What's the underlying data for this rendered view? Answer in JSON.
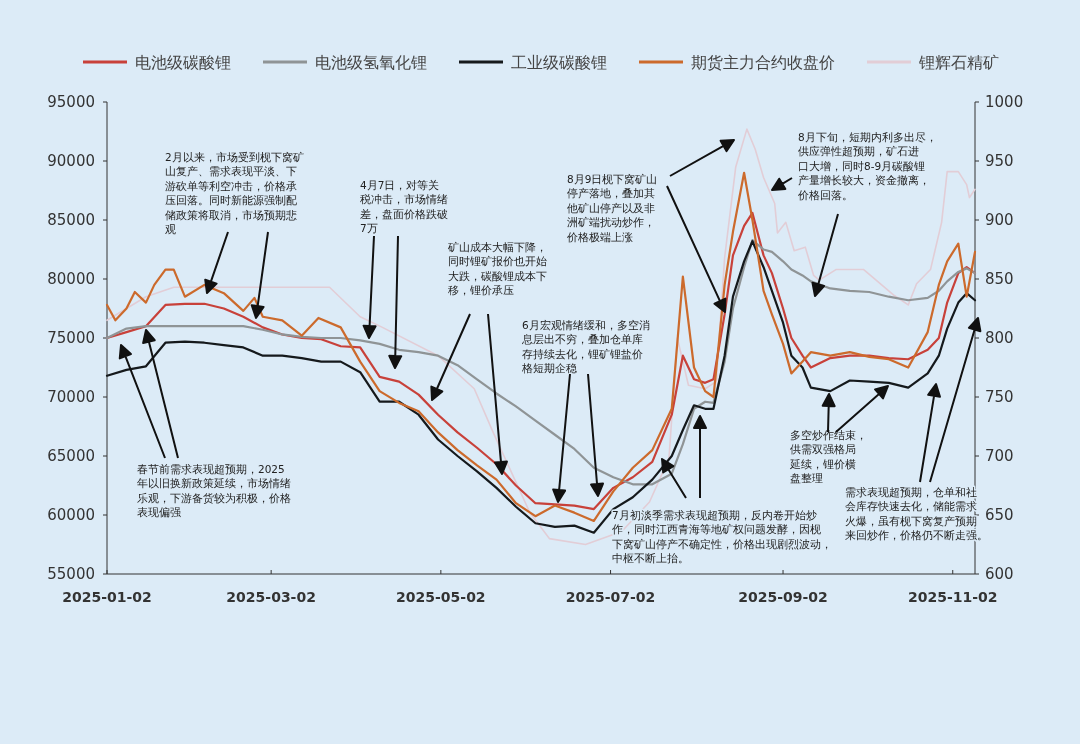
{
  "chart_data": {
    "type": "line",
    "xlim": [
      "2025-01-02",
      "2025-11-10"
    ],
    "xticks": [
      "2025-01-02",
      "2025-03-02",
      "2025-05-02",
      "2025-07-02",
      "2025-09-02",
      "2025-11-02"
    ],
    "ylim": [
      55000,
      95000
    ],
    "yticks": [
      55000,
      60000,
      65000,
      70000,
      75000,
      80000,
      85000,
      90000,
      95000
    ],
    "y2lim": [
      600,
      1000
    ],
    "y2ticks": [
      600,
      650,
      700,
      750,
      800,
      850,
      900,
      950,
      1000
    ],
    "legend": "top",
    "series": [
      {
        "name": "电池级碳酸锂",
        "color": "#c8413a",
        "x": [
          "2025-01-02",
          "2025-01-09",
          "2025-01-16",
          "2025-01-23",
          "2025-01-30",
          "2025-02-06",
          "2025-02-13",
          "2025-02-20",
          "2025-02-27",
          "2025-03-06",
          "2025-03-13",
          "2025-03-20",
          "2025-03-27",
          "2025-04-03",
          "2025-04-10",
          "2025-04-17",
          "2025-04-24",
          "2025-05-01",
          "2025-05-08",
          "2025-05-15",
          "2025-05-22",
          "2025-05-29",
          "2025-06-05",
          "2025-06-12",
          "2025-06-19",
          "2025-06-26",
          "2025-07-03",
          "2025-07-10",
          "2025-07-17",
          "2025-07-24",
          "2025-07-28",
          "2025-08-01",
          "2025-08-05",
          "2025-08-08",
          "2025-08-12",
          "2025-08-15",
          "2025-08-19",
          "2025-08-22",
          "2025-08-26",
          "2025-08-29",
          "2025-09-02",
          "2025-09-05",
          "2025-09-09",
          "2025-09-12",
          "2025-09-19",
          "2025-09-26",
          "2025-10-03",
          "2025-10-10",
          "2025-10-17",
          "2025-10-24",
          "2025-10-28",
          "2025-10-31",
          "2025-11-04",
          "2025-11-07",
          "2025-11-10"
        ],
        "values": [
          75000,
          75500,
          76000,
          77800,
          77900,
          77900,
          77500,
          76800,
          75900,
          75300,
          75000,
          74900,
          74300,
          74200,
          71700,
          71300,
          70200,
          68500,
          67000,
          65700,
          64300,
          62500,
          61000,
          60900,
          60800,
          60500,
          62300,
          63200,
          64500,
          68500,
          73500,
          71500,
          71200,
          71500,
          77000,
          82000,
          84500,
          85600,
          82000,
          80500,
          77500,
          75000,
          73500,
          72500,
          73300,
          73500,
          73500,
          73300,
          73200,
          74000,
          75000,
          78000,
          80500,
          81000,
          80500
        ]
      },
      {
        "name": "电池级氢氧化锂",
        "color": "#8f9496",
        "x": [
          "2025-01-02",
          "2025-01-09",
          "2025-01-16",
          "2025-01-23",
          "2025-01-30",
          "2025-02-06",
          "2025-02-13",
          "2025-02-20",
          "2025-02-27",
          "2025-03-06",
          "2025-03-13",
          "2025-03-20",
          "2025-03-27",
          "2025-04-03",
          "2025-04-10",
          "2025-04-17",
          "2025-04-24",
          "2025-05-01",
          "2025-05-08",
          "2025-05-15",
          "2025-05-22",
          "2025-05-29",
          "2025-06-05",
          "2025-06-12",
          "2025-06-19",
          "2025-06-26",
          "2025-07-03",
          "2025-07-10",
          "2025-07-17",
          "2025-07-24",
          "2025-07-28",
          "2025-08-01",
          "2025-08-05",
          "2025-08-08",
          "2025-08-12",
          "2025-08-15",
          "2025-08-19",
          "2025-08-22",
          "2025-08-26",
          "2025-08-29",
          "2025-09-02",
          "2025-09-05",
          "2025-09-09",
          "2025-09-12",
          "2025-09-19",
          "2025-09-26",
          "2025-10-03",
          "2025-10-10",
          "2025-10-17",
          "2025-10-24",
          "2025-10-28",
          "2025-10-31",
          "2025-11-04",
          "2025-11-07",
          "2025-11-10"
        ],
        "values": [
          75000,
          75800,
          76000,
          76000,
          76000,
          76000,
          76000,
          76000,
          75700,
          75300,
          75100,
          75000,
          75000,
          74800,
          74500,
          74000,
          73800,
          73500,
          72700,
          71500,
          70300,
          69200,
          68000,
          66800,
          65600,
          64000,
          63200,
          62600,
          62600,
          63500,
          66000,
          69000,
          69600,
          69500,
          73000,
          77500,
          81000,
          83300,
          82500,
          82300,
          81500,
          80800,
          80300,
          79800,
          79200,
          79000,
          78900,
          78500,
          78200,
          78400,
          79000,
          79800,
          80600,
          80900,
          80500
        ]
      },
      {
        "name": "工业级碳酸锂",
        "color": "#15191c",
        "x": [
          "2025-01-02",
          "2025-01-09",
          "2025-01-16",
          "2025-01-23",
          "2025-01-30",
          "2025-02-06",
          "2025-02-13",
          "2025-02-20",
          "2025-02-27",
          "2025-03-06",
          "2025-03-13",
          "2025-03-20",
          "2025-03-27",
          "2025-04-03",
          "2025-04-10",
          "2025-04-17",
          "2025-04-24",
          "2025-05-01",
          "2025-05-08",
          "2025-05-15",
          "2025-05-22",
          "2025-05-29",
          "2025-06-05",
          "2025-06-12",
          "2025-06-19",
          "2025-06-26",
          "2025-07-03",
          "2025-07-10",
          "2025-07-17",
          "2025-07-24",
          "2025-07-28",
          "2025-08-01",
          "2025-08-05",
          "2025-08-08",
          "2025-08-12",
          "2025-08-15",
          "2025-08-19",
          "2025-08-22",
          "2025-08-26",
          "2025-08-29",
          "2025-09-02",
          "2025-09-05",
          "2025-09-09",
          "2025-09-12",
          "2025-09-19",
          "2025-09-26",
          "2025-10-03",
          "2025-10-10",
          "2025-10-17",
          "2025-10-24",
          "2025-10-28",
          "2025-10-31",
          "2025-11-04",
          "2025-11-07",
          "2025-11-10"
        ],
        "values": [
          71800,
          72300,
          72600,
          74600,
          74700,
          74600,
          74400,
          74200,
          73500,
          73500,
          73300,
          73000,
          73000,
          72100,
          69600,
          69600,
          68500,
          66400,
          65000,
          63700,
          62300,
          60700,
          59300,
          59000,
          59100,
          58500,
          60500,
          61500,
          63000,
          65000,
          67200,
          69300,
          69000,
          69000,
          73500,
          78500,
          81500,
          83200,
          81000,
          79000,
          76300,
          73500,
          72500,
          70800,
          70500,
          71400,
          71300,
          71200,
          70800,
          72000,
          73500,
          75800,
          78000,
          78800,
          78200
        ]
      },
      {
        "name": "期货主力合约收盘价",
        "color": "#cc6a2c",
        "x": [
          "2025-01-02",
          "2025-01-05",
          "2025-01-09",
          "2025-01-12",
          "2025-01-16",
          "2025-01-19",
          "2025-01-23",
          "2025-01-26",
          "2025-01-30",
          "2025-02-06",
          "2025-02-13",
          "2025-02-20",
          "2025-02-24",
          "2025-02-27",
          "2025-03-06",
          "2025-03-13",
          "2025-03-19",
          "2025-03-27",
          "2025-04-03",
          "2025-04-10",
          "2025-04-17",
          "2025-04-24",
          "2025-05-01",
          "2025-05-08",
          "2025-05-15",
          "2025-05-22",
          "2025-05-29",
          "2025-06-05",
          "2025-06-12",
          "2025-06-19",
          "2025-06-26",
          "2025-07-03",
          "2025-07-10",
          "2025-07-17",
          "2025-07-24",
          "2025-07-28",
          "2025-08-01",
          "2025-08-05",
          "2025-08-08",
          "2025-08-12",
          "2025-08-15",
          "2025-08-19",
          "2025-08-22",
          "2025-08-26",
          "2025-08-29",
          "2025-09-02",
          "2025-09-05",
          "2025-09-09",
          "2025-09-12",
          "2025-09-19",
          "2025-09-26",
          "2025-10-03",
          "2025-10-10",
          "2025-10-17",
          "2025-10-24",
          "2025-10-28",
          "2025-10-31",
          "2025-11-04",
          "2025-11-07",
          "2025-11-10"
        ],
        "values": [
          77800,
          76500,
          77500,
          78900,
          78000,
          79500,
          80800,
          80800,
          78500,
          79500,
          78800,
          77300,
          78400,
          76800,
          76500,
          75200,
          76700,
          75900,
          73000,
          70500,
          69500,
          68800,
          67000,
          65500,
          64200,
          63000,
          61000,
          59900,
          60800,
          60200,
          59500,
          62000,
          64000,
          65500,
          69000,
          80200,
          72500,
          70500,
          70000,
          79500,
          84000,
          89000,
          85000,
          79000,
          77000,
          74500,
          72000,
          73000,
          73800,
          73500,
          73800,
          73400,
          73200,
          72500,
          75500,
          79500,
          81500,
          83000,
          78500,
          82300
        ]
      },
      {
        "name": "锂辉石精矿",
        "color": "#e2cdd6",
        "axis": "y2",
        "x": [
          "2025-01-02",
          "2025-01-16",
          "2025-01-26",
          "2025-02-20",
          "2025-03-23",
          "2025-04-03",
          "2025-04-11",
          "2025-05-01",
          "2025-05-14",
          "2025-05-21",
          "2025-05-28",
          "2025-06-03",
          "2025-06-10",
          "2025-06-23",
          "2025-06-29",
          "2025-07-06",
          "2025-07-16",
          "2025-07-23",
          "2025-07-26",
          "2025-07-30",
          "2025-08-05",
          "2025-08-09",
          "2025-08-12",
          "2025-08-16",
          "2025-08-20",
          "2025-08-23",
          "2025-08-26",
          "2025-08-30",
          "2025-08-31",
          "2025-09-03",
          "2025-09-06",
          "2025-09-10",
          "2025-09-13",
          "2025-09-15",
          "2025-09-21",
          "2025-10-01",
          "2025-10-12",
          "2025-10-17",
          "2025-10-20",
          "2025-10-25",
          "2025-10-29",
          "2025-10-31",
          "2025-11-04",
          "2025-11-07",
          "2025-11-08",
          "2025-11-10"
        ],
        "values": [
          815,
          835,
          843,
          843,
          843,
          818,
          809,
          785,
          757,
          719,
          683,
          652,
          630,
          625,
          630,
          636,
          661,
          698,
          800,
          760,
          757,
          763,
          868,
          945,
          977,
          960,
          936,
          914,
          889,
          898,
          874,
          877,
          853,
          849,
          858,
          858,
          836,
          828,
          846,
          858,
          898,
          941,
          941,
          930,
          919,
          926
        ]
      }
    ],
    "annotations": [
      "2月以来，市场受到枧下窝矿山复产、需求表现平淡、下游砍单等利空冲击，价格承压回落。同时新能源强制配储政策将取消，市场预期悲观",
      "春节前需求表现超预期，2025年以旧换新政策延续，市场情绪乐观，下游备货较为积极，价格表现偏强",
      "4月7日，对等关税冲击，市场情绪差，盘面价格跌破7万",
      "矿山成本大幅下降，同时锂矿报价也开始大跌，碳酸锂成本下移，锂价承压",
      "6月宏观情绪缓和，多空消息层出不穷，叠加仓单库存持续去化，锂矿锂盐价格短期企稳",
      "8月9日枧下窝矿山停产落地，叠加其他矿山停产以及非洲矿端扰动炒作，价格极端上涨",
      "7月初淡季需求表现超预期，反内卷开始炒作，同时江西青海等地矿权问题发酵，因枧下窝矿山停产不确定性，价格出现剧烈波动，中枢不断上抬。",
      "8月下旬，短期内利多出尽，供应弹性超预期，矿石进口大增，同时8-9月碳酸锂产量增长较大，资金撤离，价格回落。",
      "多空炒作结束，供需双强格局延续，锂价横盘整理",
      "需求表现超预期，仓单和社会库存快速去化，储能需求火爆，虽有枧下窝复产预期来回炒作，价格仍不断走强。"
    ]
  }
}
